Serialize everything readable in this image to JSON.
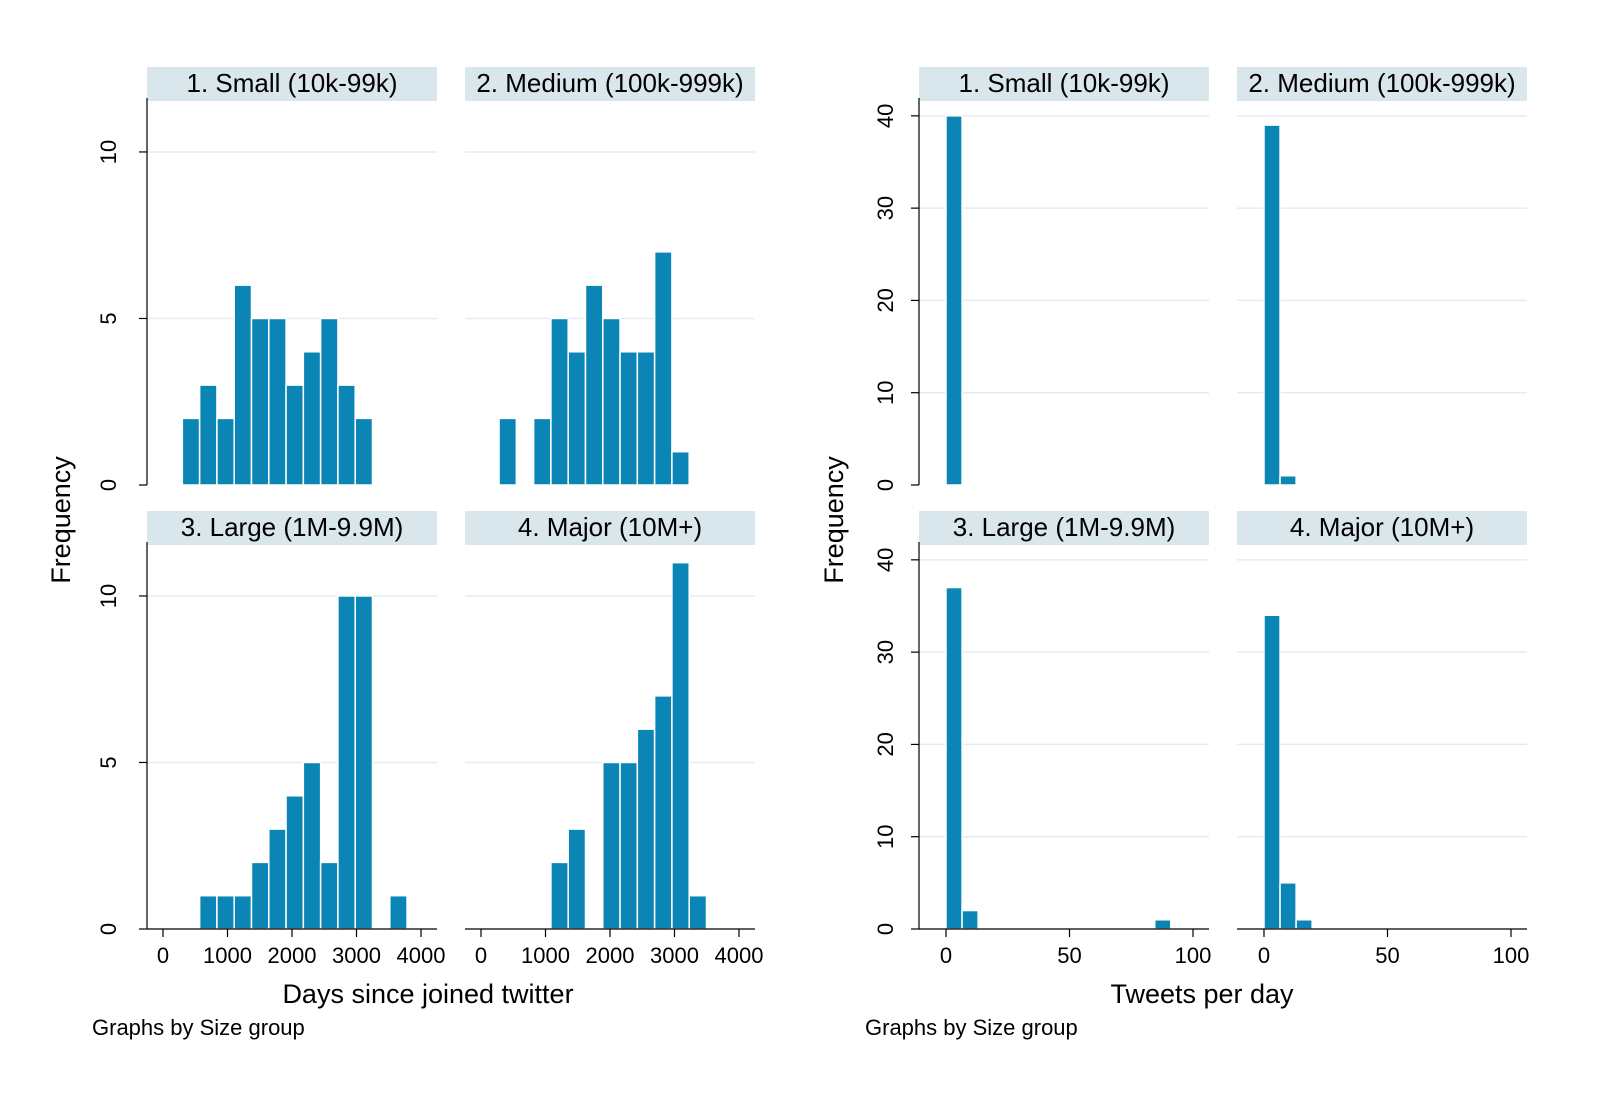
{
  "chart_data": [
    {
      "type": "bar",
      "subtype": "histogram",
      "ylabel": "Frequency",
      "xlabel": "Days since joined twitter",
      "note": "Graphs by Size group",
      "xlim": [
        0,
        4000
      ],
      "xticks": [
        0,
        1000,
        2000,
        3000,
        4000
      ],
      "xtick_labels": [
        "0",
        "1000",
        "2000",
        "3000",
        "4000"
      ],
      "ylim": [
        0,
        11.5
      ],
      "yticks": [
        0,
        5,
        10
      ],
      "ytick_labels": [
        "0",
        "5",
        "10"
      ],
      "gridlines": true,
      "bin_width": 268,
      "panels": [
        {
          "title": "1. Small (10k-99k)",
          "bins": [
            [
              300,
              2
            ],
            [
              568,
              3
            ],
            [
              836,
              2
            ],
            [
              1104,
              6
            ],
            [
              1372,
              5
            ],
            [
              1640,
              5
            ],
            [
              1908,
              3
            ],
            [
              2176,
              4
            ],
            [
              2444,
              5
            ],
            [
              2712,
              3
            ],
            [
              2980,
              2
            ]
          ]
        },
        {
          "title": "2. Medium (100k-999k)",
          "bins": [
            [
              280,
              2
            ],
            [
              816,
              2
            ],
            [
              1084,
              5
            ],
            [
              1352,
              4
            ],
            [
              1620,
              6
            ],
            [
              1888,
              5
            ],
            [
              2156,
              4
            ],
            [
              2424,
              4
            ],
            [
              2692,
              7
            ],
            [
              2960,
              1
            ]
          ]
        },
        {
          "title": "3. Large (1M-9.9M)",
          "bins": [
            [
              568,
              1
            ],
            [
              836,
              1
            ],
            [
              1104,
              1
            ],
            [
              1372,
              2
            ],
            [
              1640,
              3
            ],
            [
              1908,
              4
            ],
            [
              2176,
              5
            ],
            [
              2444,
              2
            ],
            [
              2712,
              10
            ],
            [
              2980,
              10
            ],
            [
              3516,
              1
            ]
          ]
        },
        {
          "title": "4. Major (10M+)",
          "bins": [
            [
              1084,
              2
            ],
            [
              1352,
              3
            ],
            [
              1888,
              5
            ],
            [
              2156,
              5
            ],
            [
              2424,
              6
            ],
            [
              2692,
              7
            ],
            [
              2960,
              11
            ],
            [
              3228,
              1
            ]
          ]
        }
      ]
    },
    {
      "type": "bar",
      "subtype": "histogram",
      "ylabel": "Frequency",
      "xlabel": "Tweets per day",
      "note": "Graphs by Size group",
      "xlim": [
        -5,
        101.5
      ],
      "xticks": [
        0,
        50,
        100
      ],
      "xtick_labels": [
        "0",
        "50",
        "100"
      ],
      "ylim": [
        0,
        41.5
      ],
      "yticks": [
        0,
        10,
        20,
        30,
        40
      ],
      "ytick_labels": [
        "0",
        "10",
        "20",
        "30",
        "40"
      ],
      "gridlines": true,
      "bin_width": 6.5,
      "panels": [
        {
          "title": "1. Small (10k-99k)",
          "bins": [
            [
              0,
              40
            ]
          ]
        },
        {
          "title": "2. Medium (100k-999k)",
          "bins": [
            [
              0,
              39
            ],
            [
              6.5,
              1
            ]
          ]
        },
        {
          "title": "3. Large (1M-9.9M)",
          "bins": [
            [
              0,
              37
            ],
            [
              6.5,
              2
            ],
            [
              84.5,
              1
            ]
          ]
        },
        {
          "title": "4. Major (10M+)",
          "bins": [
            [
              0,
              34
            ],
            [
              6.5,
              5
            ],
            [
              13,
              1
            ]
          ]
        }
      ]
    }
  ]
}
